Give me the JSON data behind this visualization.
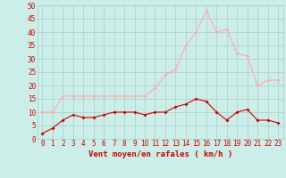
{
  "x": [
    0,
    1,
    2,
    3,
    4,
    5,
    6,
    7,
    8,
    9,
    10,
    11,
    12,
    13,
    14,
    15,
    16,
    17,
    18,
    19,
    20,
    21,
    22,
    23
  ],
  "wind_avg": [
    2,
    4,
    7,
    9,
    8,
    8,
    9,
    10,
    10,
    10,
    9,
    10,
    10,
    12,
    13,
    15,
    14,
    10,
    7,
    10,
    11,
    7,
    7,
    6
  ],
  "wind_gust": [
    10,
    10,
    16,
    16,
    16,
    16,
    16,
    16,
    16,
    16,
    16,
    19,
    24,
    26,
    35,
    40,
    48,
    40,
    41,
    32,
    31,
    20,
    22,
    22
  ],
  "color_avg": "#cc0000",
  "color_gust": "#ffaaaa",
  "bg_color": "#cceee8",
  "grid_color": "#aacccc",
  "xlabel": "Vent moyen/en rafales ( km/h )",
  "ylim": [
    0,
    50
  ],
  "xlim_min": -0.5,
  "xlim_max": 23.5,
  "yticks": [
    0,
    5,
    10,
    15,
    20,
    25,
    30,
    35,
    40,
    45,
    50
  ],
  "xticks": [
    0,
    1,
    2,
    3,
    4,
    5,
    6,
    7,
    8,
    9,
    10,
    11,
    12,
    13,
    14,
    15,
    16,
    17,
    18,
    19,
    20,
    21,
    22,
    23
  ],
  "tick_fontsize": 5.5,
  "label_fontsize": 6.5
}
